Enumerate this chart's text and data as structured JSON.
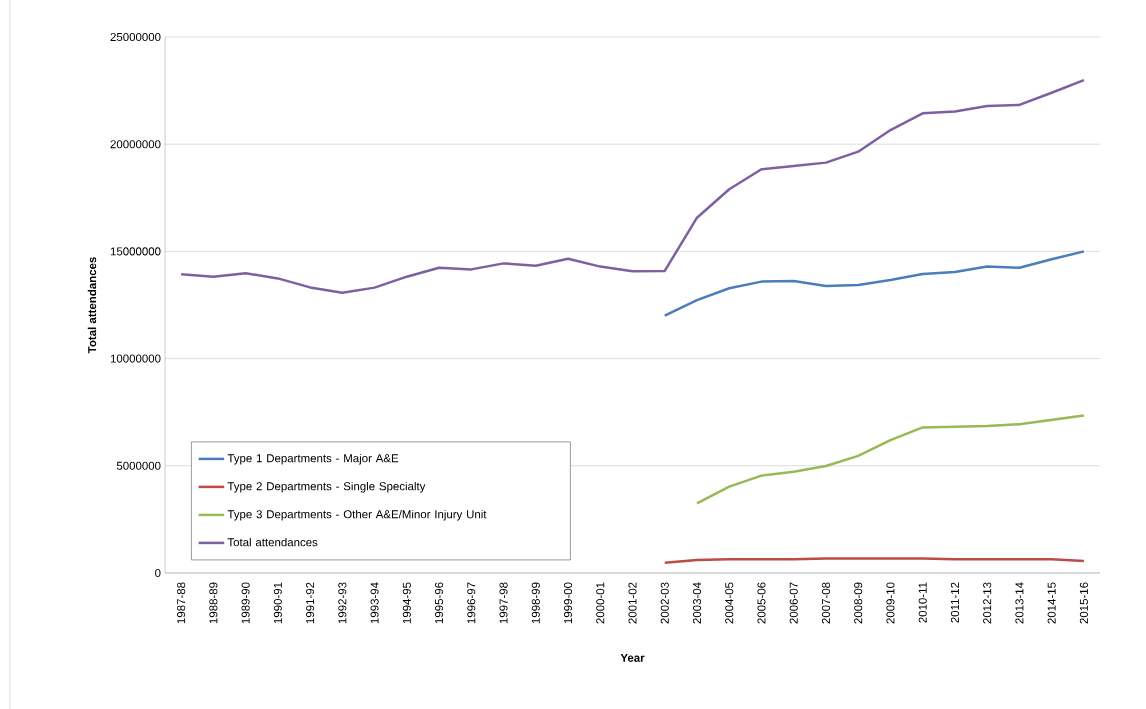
{
  "chart_data": {
    "type": "line",
    "xlabel": "Year",
    "ylabel": "Total attendances",
    "categories": [
      "1987-88",
      "1988-89",
      "1989-90",
      "1990-91",
      "1991-92",
      "1992-93",
      "1993-94",
      "1994-95",
      "1995-96",
      "1996-97",
      "1997-98",
      "1998-99",
      "1999-00",
      "2000-01",
      "2001-02",
      "2002-03",
      "2003-04",
      "2004-05",
      "2005-06",
      "2006-07",
      "2007-08",
      "2008-09",
      "2009-10",
      "2010-11",
      "2011-12",
      "2012-13",
      "2013-14",
      "2014-15",
      "2015-16"
    ],
    "series": [
      {
        "name": "Type 1 Departments - Major A&E",
        "color": "#4a7ebb",
        "values": [
          null,
          null,
          null,
          null,
          null,
          null,
          null,
          null,
          null,
          null,
          null,
          null,
          null,
          null,
          null,
          12000000,
          12730000,
          13280000,
          13590000,
          13620000,
          13390000,
          13430000,
          13670000,
          13950000,
          14040000,
          14290000,
          14240000,
          14630000,
          15000000
        ]
      },
      {
        "name": "Type 2 Departments - Single Specialty",
        "color": "#be4b48",
        "values": [
          null,
          null,
          null,
          null,
          null,
          null,
          null,
          null,
          null,
          null,
          null,
          null,
          null,
          null,
          null,
          480000,
          610000,
          640000,
          640000,
          640000,
          670000,
          670000,
          670000,
          670000,
          640000,
          640000,
          640000,
          640000,
          560000
        ]
      },
      {
        "name": "Type 3 Departments - Other A&E/Minor Injury Unit",
        "color": "#98b954",
        "values": [
          null,
          null,
          null,
          null,
          null,
          null,
          null,
          null,
          null,
          null,
          null,
          null,
          null,
          null,
          null,
          null,
          3250000,
          4030000,
          4540000,
          4720000,
          4990000,
          5460000,
          6200000,
          6790000,
          6820000,
          6860000,
          6940000,
          7140000,
          7340000
        ]
      },
      {
        "name": "Total attendances",
        "color": "#7d60a0",
        "values": [
          13930000,
          13820000,
          13980000,
          13740000,
          13320000,
          13070000,
          13310000,
          13820000,
          14240000,
          14160000,
          14440000,
          14330000,
          14660000,
          14290000,
          14070000,
          14090000,
          16570000,
          17900000,
          18830000,
          18980000,
          19140000,
          19650000,
          20660000,
          21440000,
          21520000,
          21780000,
          21830000,
          22400000,
          22990000
        ]
      }
    ],
    "ylim": [
      0,
      25000000
    ],
    "yticks": [
      0,
      5000000,
      10000000,
      15000000,
      20000000,
      25000000
    ],
    "grid": "y",
    "legend": "bottom left",
    "marker": "none",
    "line_style": "solid"
  }
}
